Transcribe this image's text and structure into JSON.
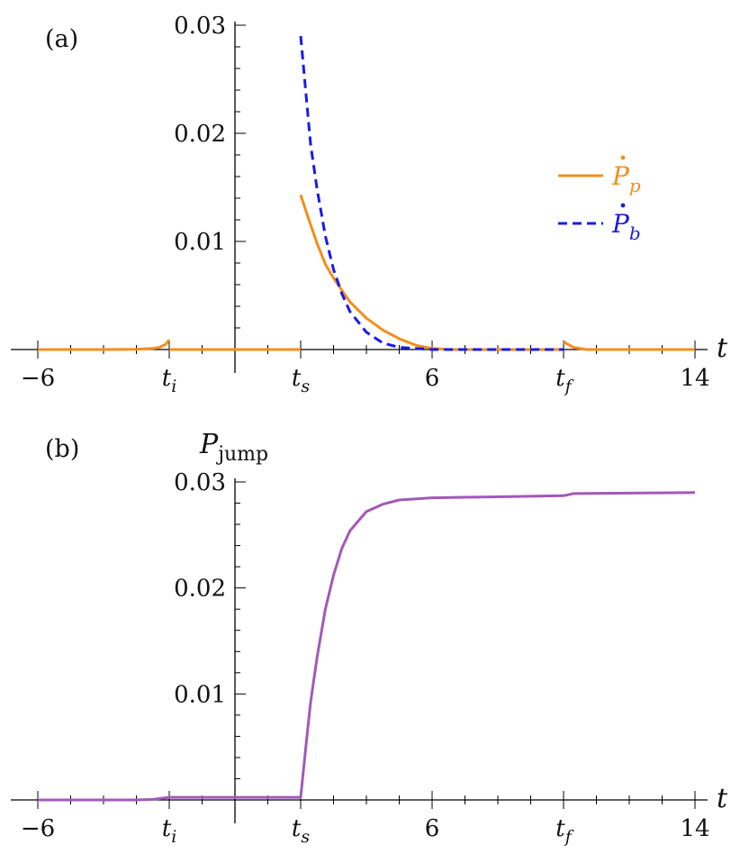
{
  "chart_data": [
    {
      "id": "a",
      "panel_label": "(a)",
      "type": "line",
      "x_axis_title": "t",
      "xlim": [
        -6,
        14
      ],
      "ylim": [
        0,
        0.03
      ],
      "x_ticks": [
        {
          "value": -6,
          "label": "−6"
        },
        {
          "value": -2,
          "label": "t",
          "sub": "i"
        },
        {
          "value": 2,
          "label": "t",
          "sub": "s"
        },
        {
          "value": 6,
          "label": "6"
        },
        {
          "value": 10,
          "label": "t",
          "sub": "f"
        },
        {
          "value": 14,
          "label": "14"
        }
      ],
      "y_ticks": [
        {
          "value": 0.01,
          "label": "0.01"
        },
        {
          "value": 0.02,
          "label": "0.02"
        },
        {
          "value": 0.03,
          "label": "0.03"
        }
      ],
      "series": [
        {
          "name_symbol": "P",
          "name_sub": "p",
          "color": "#f28e1c",
          "dash": "solid",
          "segments": [
            [
              [
                -6,
                0
              ],
              [
                -4,
                0
              ],
              [
                -3,
                2e-05
              ],
              [
                -2.5,
                0.0001
              ],
              [
                -2.3,
                0.0002
              ],
              [
                -2.1,
                0.0005
              ],
              [
                -2,
                0.0009
              ]
            ],
            [
              [
                -2,
                0
              ],
              [
                2,
                0
              ]
            ],
            [
              [
                2,
                0.0143
              ],
              [
                2.25,
                0.012
              ],
              [
                2.5,
                0.0098
              ],
              [
                2.75,
                0.0079
              ],
              [
                3,
                0.0066
              ],
              [
                3.5,
                0.0044
              ],
              [
                4,
                0.0029
              ],
              [
                4.5,
                0.0018
              ],
              [
                5,
                0.001
              ],
              [
                5.5,
                0.0004
              ],
              [
                6,
                0.0001
              ],
              [
                6.5,
                0
              ],
              [
                10,
                0
              ]
            ],
            [
              [
                10,
                0.0007
              ],
              [
                10.3,
                0.0002
              ],
              [
                10.7,
                0
              ],
              [
                14,
                0
              ]
            ]
          ]
        },
        {
          "name_symbol": "P",
          "name_sub": "b",
          "color": "#1a1ae6",
          "dash": "dashed",
          "segments": [
            [
              [
                2,
                0.029
              ],
              [
                2.15,
                0.024
              ],
              [
                2.3,
                0.019
              ],
              [
                2.5,
                0.0148
              ],
              [
                2.75,
                0.0105
              ],
              [
                3,
                0.0074
              ],
              [
                3.25,
                0.0052
              ],
              [
                3.5,
                0.0035
              ],
              [
                4,
                0.0016
              ],
              [
                4.5,
                0.0006
              ],
              [
                5,
                0.0002
              ],
              [
                6,
                0
              ],
              [
                10,
                0
              ]
            ]
          ]
        }
      ]
    },
    {
      "id": "b",
      "panel_label": "(b)",
      "type": "line",
      "y_axis_title": "P",
      "y_axis_title_sub": "jump",
      "x_axis_title": "t",
      "xlim": [
        -6,
        14
      ],
      "ylim": [
        0,
        0.03
      ],
      "x_ticks": [
        {
          "value": -6,
          "label": "−6"
        },
        {
          "value": -2,
          "label": "t",
          "sub": "i"
        },
        {
          "value": 2,
          "label": "t",
          "sub": "s"
        },
        {
          "value": 6,
          "label": "6"
        },
        {
          "value": 10,
          "label": "t",
          "sub": "f"
        },
        {
          "value": 14,
          "label": "14"
        }
      ],
      "y_ticks": [
        {
          "value": 0.01,
          "label": "0.01"
        },
        {
          "value": 0.02,
          "label": "0.02"
        },
        {
          "value": 0.03,
          "label": "0.03"
        }
      ],
      "series": [
        {
          "color": "#a259b8",
          "dash": "solid",
          "segments": [
            [
              [
                -6,
                0
              ],
              [
                -3,
                0
              ],
              [
                -2.5,
                5e-05
              ],
              [
                -2,
                0.00025
              ],
              [
                2,
                0.00025
              ],
              [
                2.15,
                0.0048
              ],
              [
                2.3,
                0.0092
              ],
              [
                2.5,
                0.0135
              ],
              [
                2.75,
                0.018
              ],
              [
                3,
                0.0212
              ],
              [
                3.25,
                0.0237
              ],
              [
                3.5,
                0.0254
              ],
              [
                4,
                0.0272
              ],
              [
                4.5,
                0.0279
              ],
              [
                5,
                0.0283
              ],
              [
                6,
                0.0285
              ],
              [
                8,
                0.0286
              ],
              [
                10,
                0.0287
              ],
              [
                10.3,
                0.0289
              ],
              [
                14,
                0.029
              ]
            ]
          ]
        }
      ]
    }
  ]
}
